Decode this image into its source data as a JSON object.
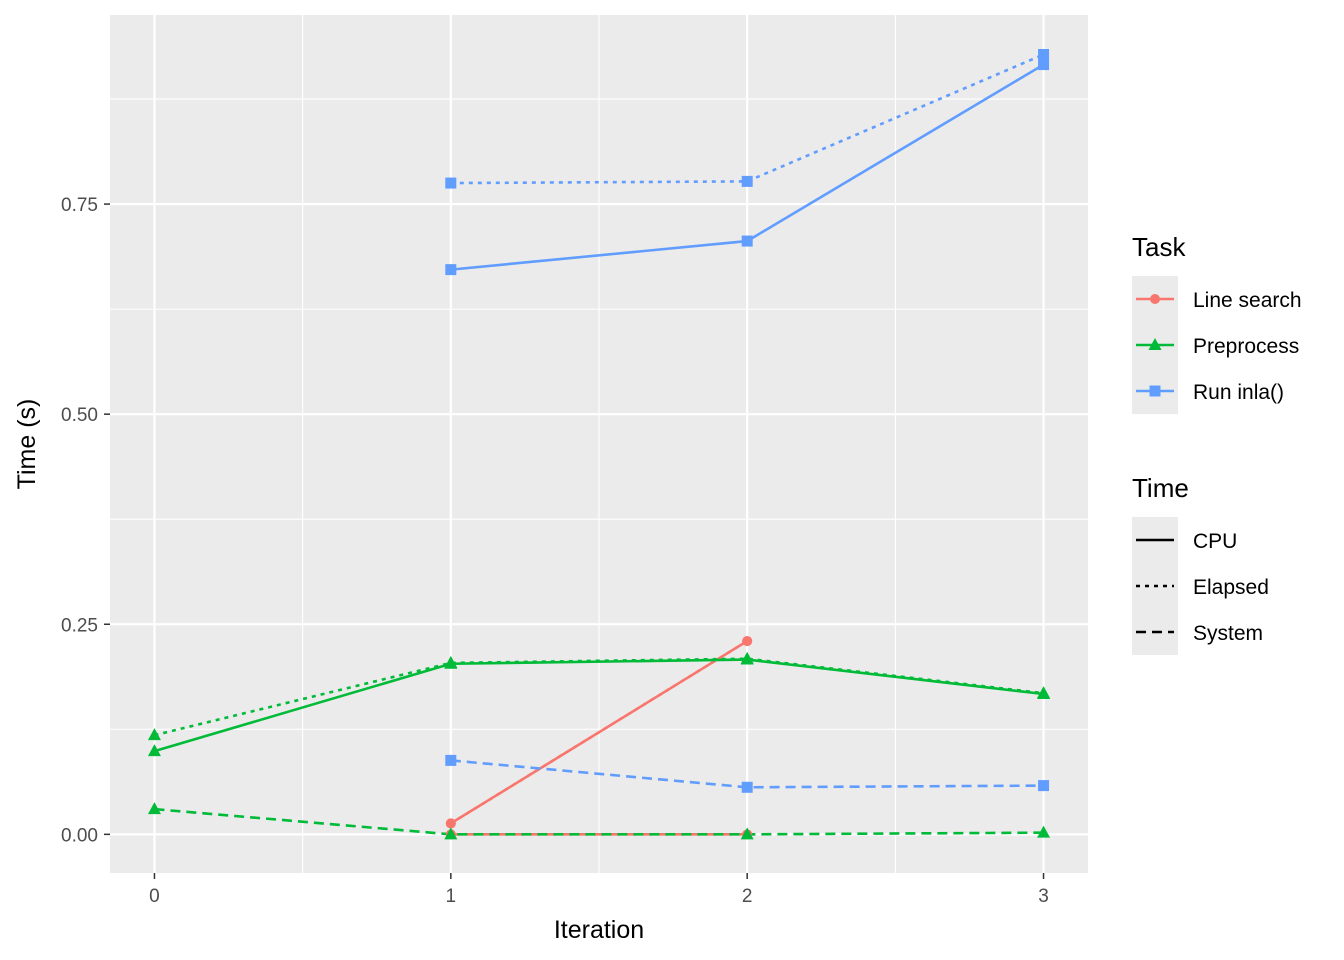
{
  "chart_data": {
    "type": "line",
    "xlabel": "Iteration",
    "ylabel": "Time (s)",
    "xlim": [
      -0.15,
      3.15
    ],
    "ylim": [
      -0.046,
      0.975
    ],
    "x_ticks": [
      0,
      1,
      2,
      3
    ],
    "x_tick_labels": [
      "0",
      "1",
      "2",
      "3"
    ],
    "y_ticks": [
      0.0,
      0.25,
      0.5,
      0.75
    ],
    "y_tick_labels": [
      "0.00",
      "0.25",
      "0.50",
      "0.75"
    ],
    "grid": true,
    "panel_background": "#EBEBEB",
    "legend_position": "right",
    "legends": [
      {
        "title": "Task",
        "kind": "color",
        "entries": [
          {
            "label": "Line search",
            "color": "#F8766D",
            "marker": "circle"
          },
          {
            "label": "Preprocess",
            "color": "#00BA38",
            "marker": "triangle"
          },
          {
            "label": "Run inla()",
            "color": "#619CFF",
            "marker": "square"
          }
        ]
      },
      {
        "title": "Time",
        "kind": "linetype",
        "entries": [
          {
            "label": "CPU",
            "linetype": "solid"
          },
          {
            "label": "Elapsed",
            "linetype": "dotted"
          },
          {
            "label": "System",
            "linetype": "dashed"
          }
        ]
      }
    ],
    "series": [
      {
        "task": "Line search",
        "time": "CPU",
        "x": [
          1,
          2
        ],
        "y": [
          0.013,
          0.23
        ]
      },
      {
        "task": "Line search",
        "time": "Elapsed",
        "x": [
          1,
          2
        ],
        "y": [
          0.013,
          0.23
        ]
      },
      {
        "task": "Line search",
        "time": "System",
        "x": [
          1,
          2
        ],
        "y": [
          0.0,
          0.0
        ]
      },
      {
        "task": "Preprocess",
        "time": "CPU",
        "x": [
          0,
          1,
          2,
          3
        ],
        "y": [
          0.099,
          0.203,
          0.208,
          0.167
        ]
      },
      {
        "task": "Preprocess",
        "time": "Elapsed",
        "x": [
          0,
          1,
          2,
          3
        ],
        "y": [
          0.118,
          0.204,
          0.209,
          0.168
        ]
      },
      {
        "task": "Preprocess",
        "time": "System",
        "x": [
          0,
          1,
          2,
          3
        ],
        "y": [
          0.03,
          0.0,
          0.0,
          0.002
        ]
      },
      {
        "task": "Run inla()",
        "time": "CPU",
        "x": [
          1,
          2,
          3
        ],
        "y": [
          0.672,
          0.706,
          0.916
        ]
      },
      {
        "task": "Run inla()",
        "time": "Elapsed",
        "x": [
          1,
          2,
          3
        ],
        "y": [
          0.775,
          0.777,
          0.928
        ]
      },
      {
        "task": "Run inla()",
        "time": "System",
        "x": [
          1,
          2,
          3
        ],
        "y": [
          0.088,
          0.056,
          0.058
        ]
      }
    ]
  }
}
